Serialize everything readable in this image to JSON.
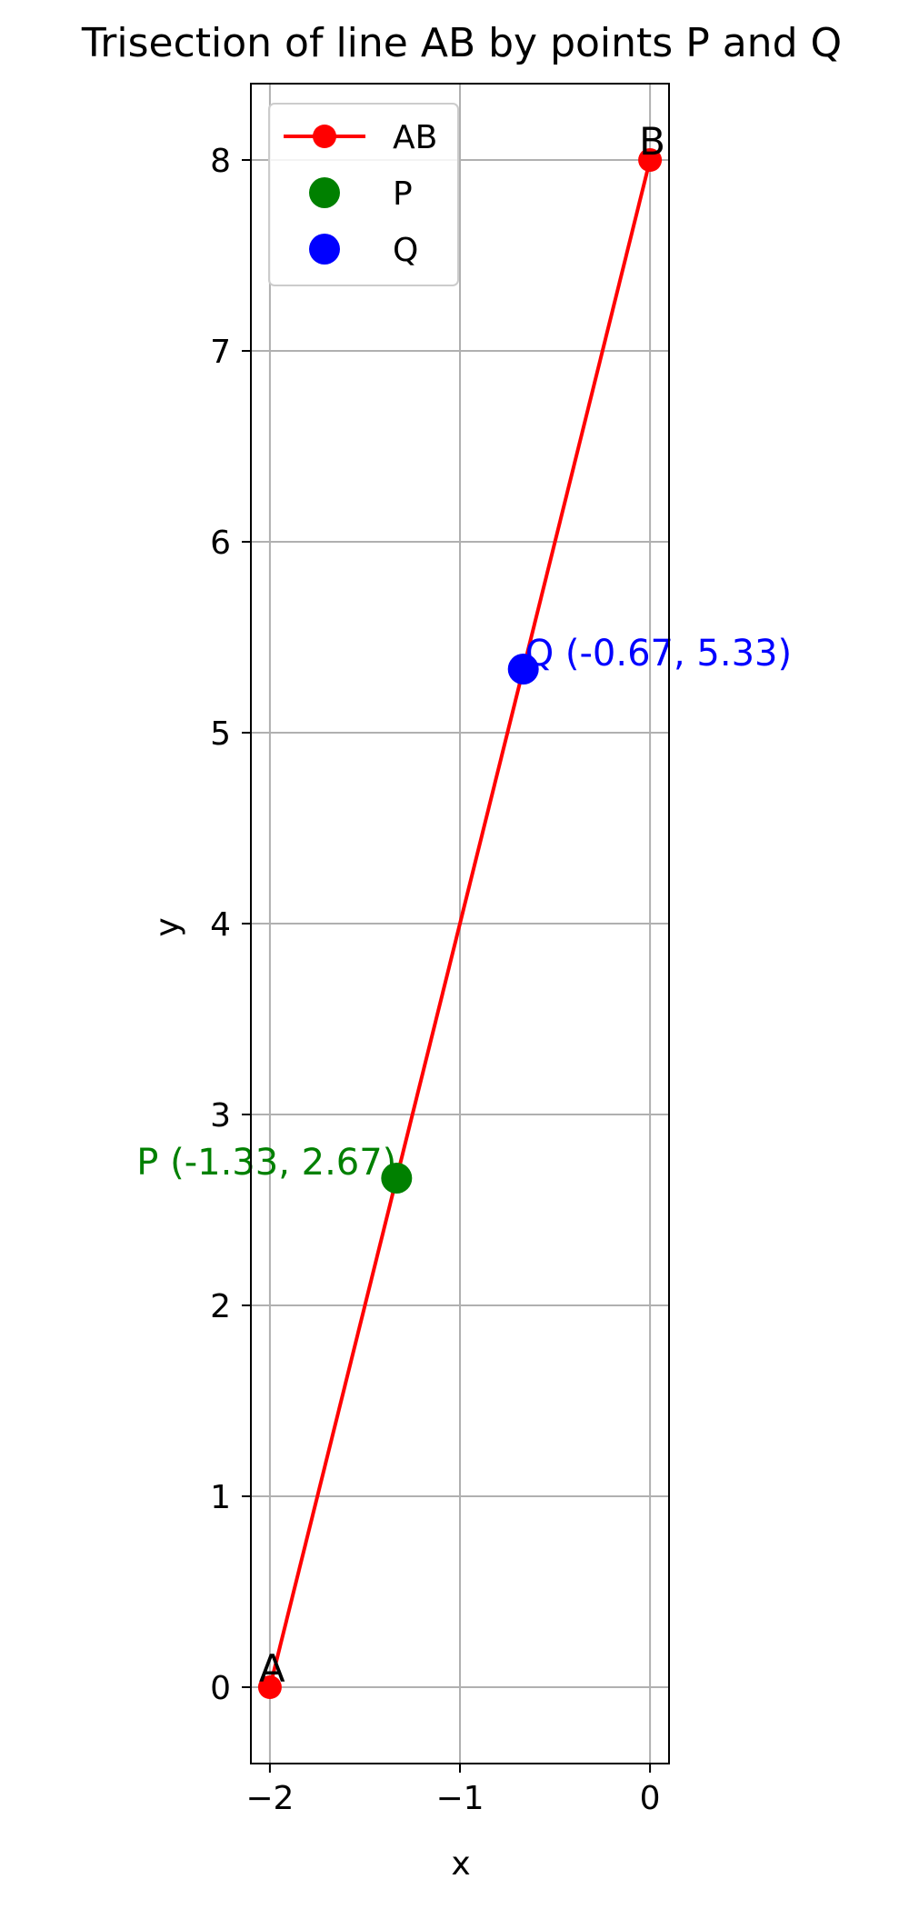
{
  "chart_data": {
    "type": "line",
    "title": "Trisection of line AB by points P and Q",
    "xlabel": "x",
    "ylabel": "y",
    "xlim": [
      -2.1,
      0.1
    ],
    "ylim": [
      -0.4,
      8.4
    ],
    "xticks": [
      {
        "value": -2,
        "label": "−2"
      },
      {
        "value": -1,
        "label": "−1"
      },
      {
        "value": 0,
        "label": "0"
      }
    ],
    "yticks": [
      {
        "value": 0,
        "label": "0"
      },
      {
        "value": 1,
        "label": "1"
      },
      {
        "value": 2,
        "label": "2"
      },
      {
        "value": 3,
        "label": "3"
      },
      {
        "value": 4,
        "label": "4"
      },
      {
        "value": 5,
        "label": "5"
      },
      {
        "value": 6,
        "label": "6"
      },
      {
        "value": 7,
        "label": "7"
      },
      {
        "value": 8,
        "label": "8"
      }
    ],
    "grid": true,
    "legend_position": "top-left",
    "series": [
      {
        "name": "AB",
        "kind": "line-marker",
        "color": "#ff0000",
        "x": [
          -2,
          0
        ],
        "y": [
          0,
          8
        ]
      },
      {
        "name": "P",
        "kind": "marker",
        "color": "#008000",
        "x": [
          -1.3333
        ],
        "y": [
          2.6667
        ]
      },
      {
        "name": "Q",
        "kind": "marker",
        "color": "#0000ff",
        "x": [
          -0.6667
        ],
        "y": [
          5.3333
        ]
      }
    ],
    "annotations": [
      {
        "text": "A",
        "x": -2,
        "y": 0,
        "color": "#000000"
      },
      {
        "text": "B",
        "x": 0,
        "y": 8,
        "color": "#000000"
      },
      {
        "text": "P (-1.33, 2.67)",
        "x": -1.3333,
        "y": 2.6667,
        "color": "#008000"
      },
      {
        "text": "Q (-0.67, 5.33)",
        "x": -0.6667,
        "y": 5.3333,
        "color": "#0000ff"
      }
    ]
  }
}
